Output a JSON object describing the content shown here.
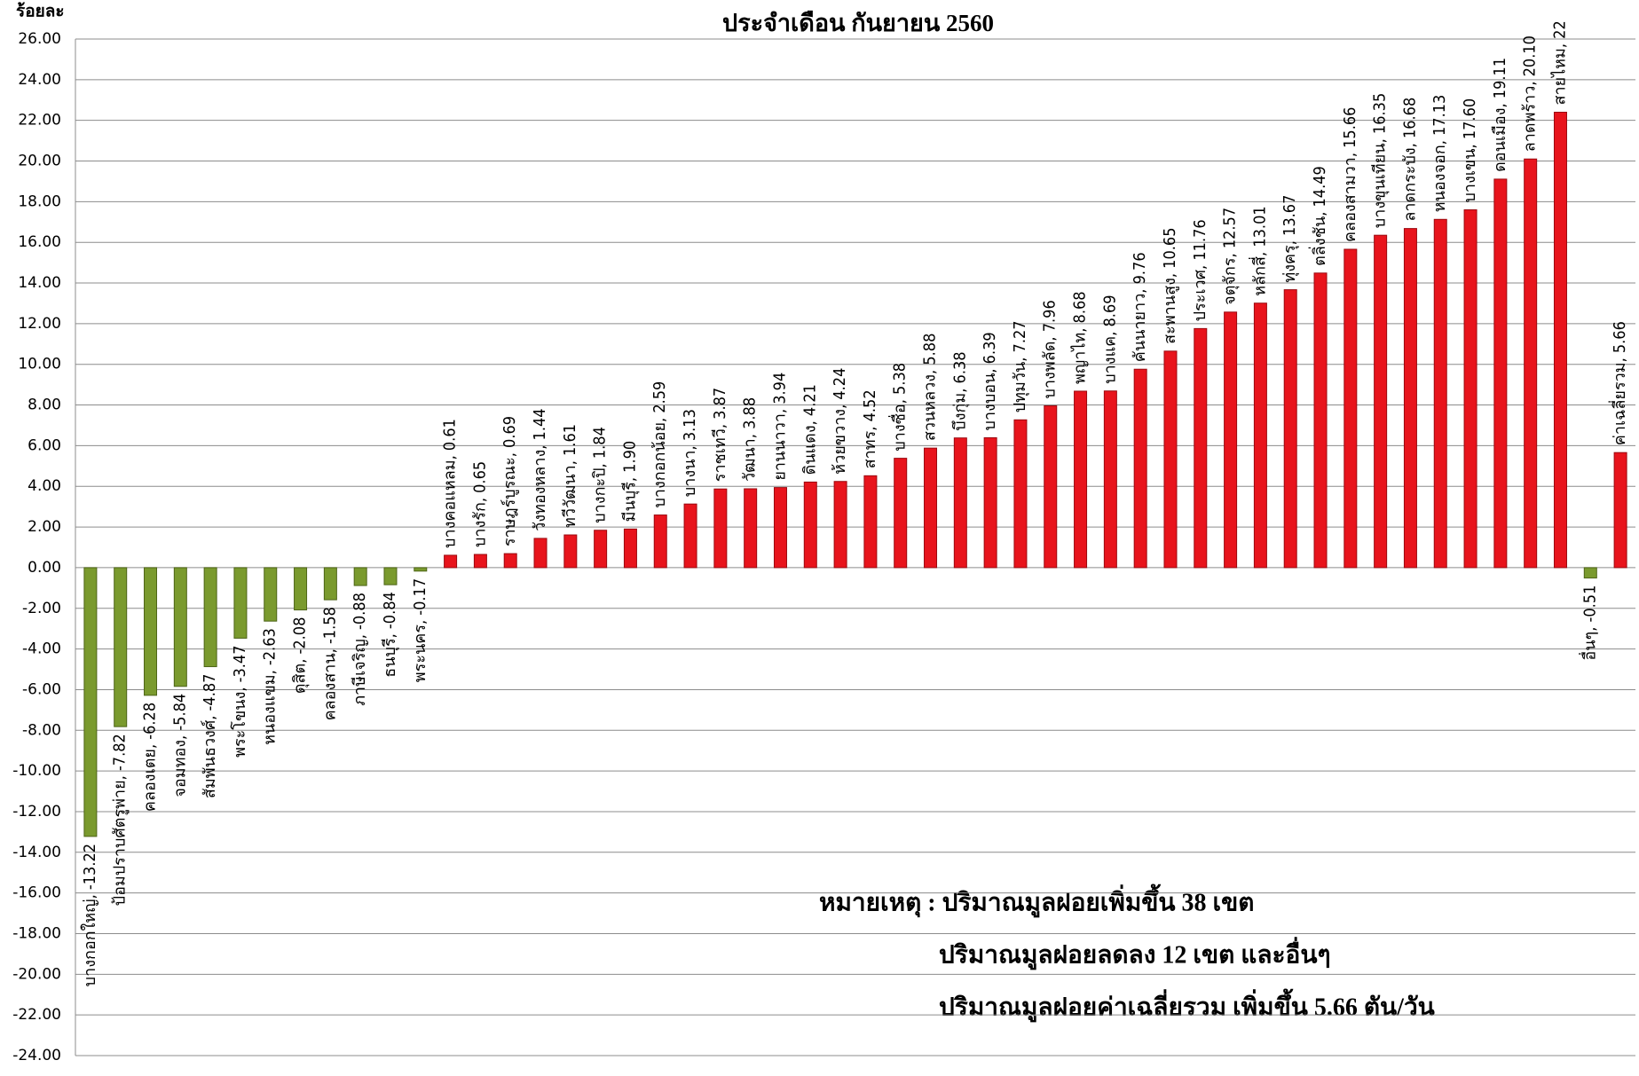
{
  "chart_data": {
    "type": "bar",
    "title": "ประจำเดือน กันยายน 2560",
    "y_axis_label": "ร้อยละ",
    "values": [
      -13.22,
      -7.82,
      -6.28,
      -5.84,
      -4.87,
      -3.47,
      -2.63,
      -2.08,
      -1.58,
      -0.88,
      -0.84,
      -0.17,
      0.61,
      0.65,
      0.69,
      1.44,
      1.61,
      1.84,
      1.9,
      2.59,
      3.13,
      3.87,
      3.88,
      3.94,
      4.21,
      4.24,
      4.52,
      5.38,
      5.88,
      6.38,
      6.39,
      7.27,
      7.96,
      8.68,
      8.69,
      9.76,
      10.65,
      11.76,
      12.57,
      13.01,
      13.67,
      14.49,
      15.66,
      16.35,
      16.68,
      17.13,
      17.6,
      19.11,
      20.1,
      22.4,
      -0.51,
      5.66
    ],
    "value_labels": [
      "บางกอกใหญ่, -13.22",
      "ป้อมปราบศัตรูพ่าย, -7.82",
      "คลองเตย, -6.28",
      "จอมทอง, -5.84",
      "สัมพันธวงศ์, -4.87",
      "พระโขนง, -3.47",
      "หนองแขม, -2.63",
      "ดุสิต, -2.08",
      "คลองสาน, -1.58",
      "ภาษีเจริญ, -0.88",
      "ธนบุรี, -0.84",
      "พระนคร, -0.17",
      "บางคอแหลม, 0.61",
      "บางรัก, 0.65",
      "ราษฎร์บูรณะ, 0.69",
      "วังทองหลาง, 1.44",
      "ทวีวัฒนา, 1.61",
      "บางกะปิ, 1.84",
      "มีนบุรี, 1.90",
      "บางกอกน้อย, 2.59",
      "บางนา, 3.13",
      "ราชเทวี, 3.87",
      "วัฒนา, 3.88",
      "ยานนาวา, 3.94",
      "ดินแดง, 4.21",
      "ห้วยขวาง, 4.24",
      "สาทร, 4.52",
      "บางซื่อ, 5.38",
      "สวนหลวง, 5.88",
      "บึงกุ่ม, 6.38",
      "บางบอน, 6.39",
      "ปทุมวัน, 7.27",
      "บางพลัด, 7.96",
      "พญาไท, 8.68",
      "บางแค, 8.69",
      "คันนายาว, 9.76",
      "สะพานสูง, 10.65",
      "ประเวศ, 11.76",
      "จตุจักร, 12.57",
      "หลักสี่, 13.01",
      "ทุ่งครุ, 13.67",
      "ตลิ่งชัน, 14.49",
      "คลองสามวา, 15.66",
      "บางขุนเทียน, 16.35",
      "ลาดกระบัง, 16.68",
      "หนองจอก, 17.13",
      "บางเขน, 17.60",
      "ดอนเมือง, 19.11",
      "ลาดพร้าว, 20.10",
      "สายไหม, 22",
      "อื่นๆ, -0.51",
      "ค่าเฉลี่ยรวม, 5.66"
    ],
    "positive_color": "#e8141c",
    "negative_color": "#7a9a2e",
    "ylim": [
      -24,
      26
    ],
    "yticks": [
      {
        "value": -24,
        "label": "-24.00"
      },
      {
        "value": -22,
        "label": "-22.00"
      },
      {
        "value": -20,
        "label": "-20.00"
      },
      {
        "value": -18,
        "label": "-18.00"
      },
      {
        "value": -16,
        "label": "-16.00"
      },
      {
        "value": -14,
        "label": "-14.00"
      },
      {
        "value": -12,
        "label": "-12.00"
      },
      {
        "value": -10,
        "label": "-10.00"
      },
      {
        "value": -8,
        "label": "-8.00"
      },
      {
        "value": -6,
        "label": "-6.00"
      },
      {
        "value": -4,
        "label": "-4.00"
      },
      {
        "value": -2,
        "label": "-2.00"
      },
      {
        "value": 0,
        "label": "0.00"
      },
      {
        "value": 2,
        "label": "2.00"
      },
      {
        "value": 4,
        "label": "4.00"
      },
      {
        "value": 6,
        "label": "6.00"
      },
      {
        "value": 8,
        "label": "8.00"
      },
      {
        "value": 10,
        "label": "10.00"
      },
      {
        "value": 12,
        "label": "12.00"
      },
      {
        "value": 14,
        "label": "14.00"
      },
      {
        "value": 16,
        "label": "16.00"
      },
      {
        "value": 18,
        "label": "18.00"
      },
      {
        "value": 20,
        "label": "20.00"
      },
      {
        "value": 22,
        "label": "22.00"
      },
      {
        "value": 24,
        "label": "24.00"
      },
      {
        "value": 26,
        "label": "26.00"
      }
    ],
    "grid": true,
    "annotations": [
      "หมายเหตุ : ปริมาณมูลฝอยเพิ่มขึ้น   38  เขต",
      "ปริมาณมูลฝอยลดลง     12  เขต และอื่นๆ",
      "ปริมาณมูลฝอยค่าเฉลี่ยรวม เพิ่มขึ้น  5.66 ตัน/วัน"
    ]
  }
}
